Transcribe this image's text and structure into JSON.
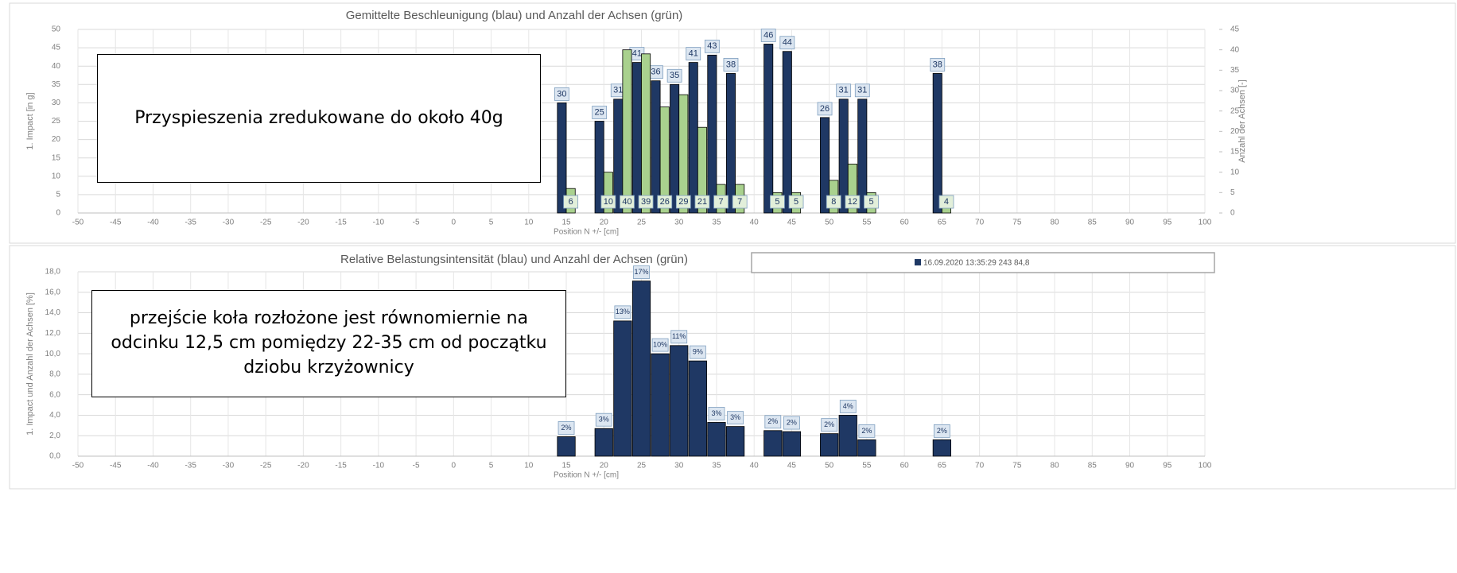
{
  "chart_data": [
    {
      "type": "bar",
      "title": "Gemittelte Beschleunigung (blau) und Anzahl der Achsen (grün)",
      "y_label": "1. Impact [in g]",
      "y2_label": "Anzahl der Achsen [-]",
      "x_label": "Position N +/- [cm]",
      "x": [
        15,
        20,
        22.5,
        25,
        27.5,
        30,
        32.5,
        35,
        37.5,
        42.5,
        45,
        50,
        52.5,
        55,
        65
      ],
      "xlim": [
        -50,
        100
      ],
      "xticks": [
        -50,
        -45,
        -40,
        -35,
        -30,
        -25,
        -20,
        -15,
        -10,
        -5,
        0,
        5,
        10,
        15,
        20,
        25,
        30,
        35,
        40,
        45,
        50,
        55,
        60,
        65,
        70,
        75,
        80,
        85,
        90,
        95,
        100
      ],
      "ylim": [
        0,
        50
      ],
      "yticks": [
        0,
        5,
        10,
        15,
        20,
        25,
        30,
        35,
        40,
        45,
        50
      ],
      "y2lim": [
        0,
        45
      ],
      "y2ticks": [
        0,
        5,
        10,
        15,
        20,
        25,
        30,
        35,
        40,
        45
      ],
      "grid": true,
      "series": [
        {
          "color": "#1f3864",
          "values": [
            30,
            25,
            31,
            41,
            36,
            35,
            41,
            43,
            38,
            46,
            44,
            26,
            31,
            31,
            38
          ]
        },
        {
          "color": "#a9d18e",
          "axis": "y2",
          "values": [
            6,
            10,
            40,
            39,
            26,
            29,
            21,
            7,
            7,
            5,
            5,
            8,
            12,
            5,
            4
          ]
        }
      ]
    },
    {
      "type": "bar",
      "title": "Relative Belastungsintensität (blau) und Anzahl der Achsen (grün)",
      "y_label": "1. Impact und Anzahl der Achsen [%]",
      "x_label": "Position N +/- [cm]",
      "x": [
        15,
        20,
        22.5,
        25,
        27.5,
        30,
        32.5,
        35,
        37.5,
        42.5,
        45,
        50,
        52.5,
        55,
        65
      ],
      "xlim": [
        -50,
        100
      ],
      "xticks": [
        -50,
        -45,
        -40,
        -35,
        -30,
        -25,
        -20,
        -15,
        -10,
        -5,
        0,
        5,
        10,
        15,
        20,
        25,
        30,
        35,
        40,
        45,
        50,
        55,
        60,
        65,
        70,
        75,
        80,
        85,
        90,
        95,
        100
      ],
      "ylim": [
        0,
        18
      ],
      "yticks": [
        {
          "value": 0,
          "label": "0,0"
        },
        {
          "value": 2,
          "label": "2,0"
        },
        {
          "value": 4,
          "label": "4,0"
        },
        {
          "value": 6,
          "label": "6,0"
        },
        {
          "value": 8,
          "label": "8,0"
        },
        {
          "value": 10,
          "label": "10,0"
        },
        {
          "value": 12,
          "label": "12,0"
        },
        {
          "value": 14,
          "label": "14,0"
        },
        {
          "value": 16,
          "label": "16,0"
        },
        {
          "value": 18,
          "label": "18,0"
        }
      ],
      "grid": true,
      "legend": "top-right",
      "series": [
        {
          "name": "16.09.2020 13:35:29 243 84,8",
          "color": "#1f3864",
          "values": [
            1.9,
            2.7,
            13.2,
            17.1,
            10.0,
            10.8,
            9.3,
            3.3,
            2.9,
            2.5,
            2.4,
            2.2,
            4.0,
            1.6,
            1.6
          ],
          "value_labels": [
            "2%",
            "3%",
            "13%",
            "17%",
            "10%",
            "11%",
            "9%",
            "3%",
            "3%",
            "2%",
            "2%",
            "2%",
            "4%",
            "2%",
            "2%"
          ]
        }
      ]
    }
  ],
  "annotations": [
    {
      "text": "Przyspieszenia zredukowane do około 40g"
    },
    {
      "text": "przejście koła rozłożone jest równomiernie na odcinku 12,5 cm pomiędzy 22-35 cm od początku dziobu krzyżownicy"
    }
  ]
}
